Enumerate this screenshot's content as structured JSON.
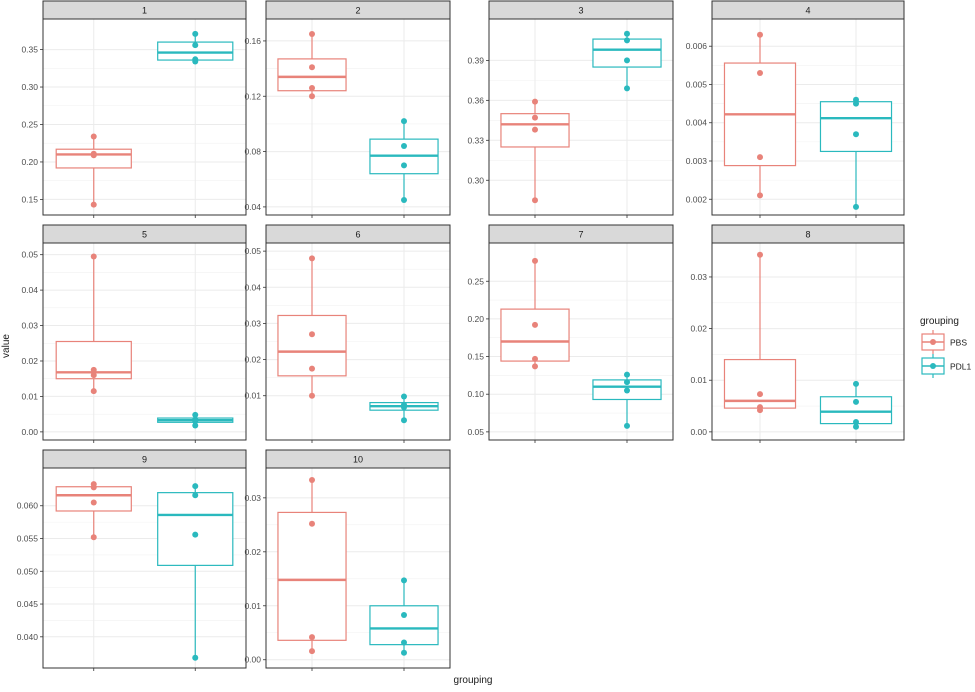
{
  "chart_data": {
    "type": "boxplot",
    "facet_by": "cluster",
    "xlabel": "grouping",
    "ylabel": "value",
    "legend": {
      "title": "grouping",
      "position": "right",
      "entries": [
        "PBS",
        "PDL1"
      ]
    },
    "colors": {
      "PBS": "#E8837A",
      "PDL1": "#2AB9BE",
      "strip_fill": "#D9D9D9",
      "grid": "#EBEBEB"
    },
    "grid": true,
    "facets": [
      {
        "label": "1",
        "ylim": [
          0.14,
          0.38
        ],
        "yticks": [
          0.15,
          0.2,
          0.25,
          0.3,
          0.35
        ],
        "ytick_labels": [
          "0.15",
          "0.20",
          "0.25",
          "0.30",
          "0.35"
        ],
        "groups": [
          {
            "name": "PBS",
            "points": [
              0.234,
              0.211,
              0.209,
              0.143
            ],
            "box": {
              "min": 0.143,
              "q1": 0.192,
              "median": 0.21,
              "q3": 0.217,
              "max": 0.234
            }
          },
          {
            "name": "PDL1",
            "points": [
              0.371,
              0.356,
              0.337,
              0.334
            ],
            "box": {
              "min": 0.334,
              "q1": 0.336,
              "median": 0.346,
              "q3": 0.36,
              "max": 0.371
            }
          }
        ]
      },
      {
        "label": "2",
        "ylim": [
          0.04,
          0.17
        ],
        "yticks": [
          0.04,
          0.08,
          0.12,
          0.16
        ],
        "ytick_labels": [
          "0.04",
          "0.08",
          "0.12",
          "0.16"
        ],
        "groups": [
          {
            "name": "PBS",
            "points": [
              0.165,
              0.141,
              0.126,
              0.12
            ],
            "box": {
              "min": 0.12,
              "q1": 0.124,
              "median": 0.134,
              "q3": 0.147,
              "max": 0.165
            }
          },
          {
            "name": "PDL1",
            "points": [
              0.102,
              0.084,
              0.07,
              0.045
            ],
            "box": {
              "min": 0.045,
              "q1": 0.064,
              "median": 0.077,
              "q3": 0.089,
              "max": 0.102
            }
          }
        ]
      },
      {
        "label": "3",
        "ylim": [
          0.28,
          0.415
        ],
        "yticks": [
          0.3,
          0.33,
          0.36,
          0.39
        ],
        "ytick_labels": [
          "0.30",
          "0.33",
          "0.36",
          "0.39"
        ],
        "groups": [
          {
            "name": "PBS",
            "points": [
              0.359,
              0.347,
              0.338,
              0.285
            ],
            "box": {
              "min": 0.285,
              "q1": 0.325,
              "median": 0.342,
              "q3": 0.35,
              "max": 0.359
            }
          },
          {
            "name": "PDL1",
            "points": [
              0.41,
              0.405,
              0.39,
              0.369
            ],
            "box": {
              "min": 0.369,
              "q1": 0.385,
              "median": 0.398,
              "q3": 0.406,
              "max": 0.41
            }
          }
        ]
      },
      {
        "label": "4",
        "ylim": [
          0.0018,
          0.0065
        ],
        "yticks": [
          0.002,
          0.003,
          0.004,
          0.005,
          0.006
        ],
        "ytick_labels": [
          "0.002",
          "0.003",
          "0.004",
          "0.005",
          "0.006"
        ],
        "groups": [
          {
            "name": "PBS",
            "points": [
              0.0063,
              0.0053,
              0.0031,
              0.0021
            ],
            "box": {
              "min": 0.0021,
              "q1": 0.00288,
              "median": 0.00422,
              "q3": 0.00556,
              "max": 0.0063
            }
          },
          {
            "name": "PDL1",
            "points": [
              0.0046,
              0.0045,
              0.0037,
              0.0018
            ],
            "box": {
              "min": 0.0018,
              "q1": 0.00325,
              "median": 0.00412,
              "q3": 0.00455,
              "max": 0.0046
            }
          }
        ]
      },
      {
        "label": "5",
        "ylim": [
          0.0,
          0.051
        ],
        "yticks": [
          0.0,
          0.01,
          0.02,
          0.03,
          0.04,
          0.05
        ],
        "ytick_labels": [
          "0.00",
          "0.01",
          "0.02",
          "0.03",
          "0.04",
          "0.05"
        ],
        "groups": [
          {
            "name": "PBS",
            "points": [
              0.0495,
              0.0175,
              0.016,
              0.0115
            ],
            "box": {
              "min": 0.0115,
              "q1": 0.015,
              "median": 0.0168,
              "q3": 0.0255,
              "max": 0.0495
            }
          },
          {
            "name": "PDL1",
            "points": [
              0.0048,
              0.0035,
              0.003,
              0.0018
            ],
            "box": {
              "min": 0.0018,
              "q1": 0.0027,
              "median": 0.0033,
              "q3": 0.0039,
              "max": 0.0048
            }
          }
        ]
      },
      {
        "label": "6",
        "ylim": [
          0.0,
          0.05
        ],
        "yticks": [
          0.01,
          0.02,
          0.03,
          0.04,
          0.05
        ],
        "ytick_labels": [
          "0.01",
          "0.02",
          "0.03",
          "0.04",
          "0.05"
        ],
        "groups": [
          {
            "name": "PBS",
            "points": [
              0.048,
              0.027,
              0.0175,
              0.01
            ],
            "box": {
              "min": 0.01,
              "q1": 0.0155,
              "median": 0.0222,
              "q3": 0.0322,
              "max": 0.048
            }
          },
          {
            "name": "PDL1",
            "points": [
              0.0098,
              0.0075,
              0.0068,
              0.0032
            ],
            "box": {
              "min": 0.0032,
              "q1": 0.006,
              "median": 0.0071,
              "q3": 0.0081,
              "max": 0.0098
            }
          }
        ]
      },
      {
        "label": "7",
        "ylim": [
          0.05,
          0.29
        ],
        "yticks": [
          0.05,
          0.1,
          0.15,
          0.2,
          0.25
        ],
        "ytick_labels": [
          "0.05",
          "0.10",
          "0.15",
          "0.20",
          "0.25"
        ],
        "groups": [
          {
            "name": "PBS",
            "points": [
              0.277,
              0.192,
              0.147,
              0.137
            ],
            "box": {
              "min": 0.137,
              "q1": 0.144,
              "median": 0.17,
              "q3": 0.213,
              "max": 0.277
            }
          },
          {
            "name": "PDL1",
            "points": [
              0.126,
              0.116,
              0.105,
              0.058
            ],
            "box": {
              "min": 0.058,
              "q1": 0.093,
              "median": 0.11,
              "q3": 0.119,
              "max": 0.126
            }
          }
        ]
      },
      {
        "label": "8",
        "ylim": [
          0.0,
          0.035
        ],
        "yticks": [
          0.0,
          0.01,
          0.02,
          0.03
        ],
        "ytick_labels": [
          "0.00",
          "0.01",
          "0.02",
          "0.03"
        ],
        "groups": [
          {
            "name": "PBS",
            "points": [
              0.0343,
              0.0073,
              0.0048,
              0.0042
            ],
            "box": {
              "min": 0.0042,
              "q1": 0.0046,
              "median": 0.006,
              "q3": 0.014,
              "max": 0.0343
            }
          },
          {
            "name": "PDL1",
            "points": [
              0.0093,
              0.0058,
              0.0019,
              0.001
            ],
            "box": {
              "min": 0.001,
              "q1": 0.0016,
              "median": 0.0039,
              "q3": 0.0068,
              "max": 0.0093
            }
          }
        ]
      },
      {
        "label": "9",
        "ylim": [
          0.0365,
          0.0645
        ],
        "yticks": [
          0.04,
          0.045,
          0.05,
          0.055,
          0.06
        ],
        "ytick_labels": [
          "0.040",
          "0.045",
          "0.050",
          "0.055",
          "0.060"
        ],
        "groups": [
          {
            "name": "PBS",
            "points": [
              0.0633,
              0.0628,
              0.0605,
              0.0552
            ],
            "box": {
              "min": 0.0552,
              "q1": 0.0592,
              "median": 0.0616,
              "q3": 0.0629,
              "max": 0.0633
            }
          },
          {
            "name": "PDL1",
            "points": [
              0.063,
              0.0616,
              0.0556,
              0.0368
            ],
            "box": {
              "min": 0.0368,
              "q1": 0.0509,
              "median": 0.0586,
              "q3": 0.062,
              "max": 0.063
            }
          }
        ]
      },
      {
        "label": "10",
        "ylim": [
          0.0,
          0.034
        ],
        "yticks": [
          0.0,
          0.01,
          0.02,
          0.03
        ],
        "ytick_labels": [
          "0.00",
          "0.01",
          "0.02",
          "0.03"
        ],
        "groups": [
          {
            "name": "PBS",
            "points": [
              0.0333,
              0.0252,
              0.0042,
              0.0016
            ],
            "box": {
              "min": 0.0016,
              "q1": 0.0036,
              "median": 0.0148,
              "q3": 0.0273,
              "max": 0.0333
            }
          },
          {
            "name": "PDL1",
            "points": [
              0.0147,
              0.0083,
              0.0032,
              0.0013
            ],
            "box": {
              "min": 0.0013,
              "q1": 0.0028,
              "median": 0.0058,
              "q3": 0.01,
              "max": 0.0147
            }
          }
        ]
      }
    ]
  }
}
